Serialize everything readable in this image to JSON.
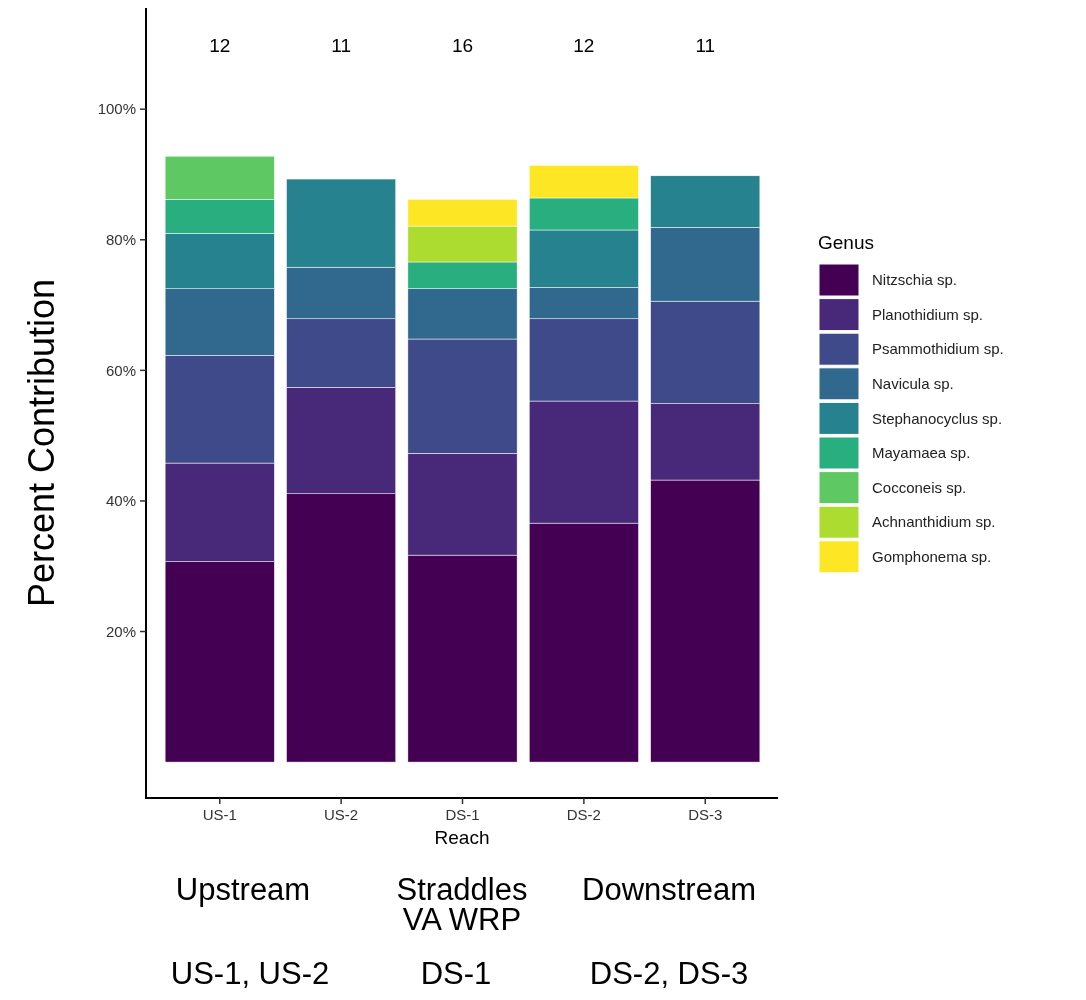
{
  "chart_data": {
    "type": "bar",
    "stacked": true,
    "xlabel": "Reach",
    "ylabel": "Percent Contribution",
    "legend_title": "Genus",
    "legend": "right",
    "categories": [
      "US-1",
      "US-2",
      "DS-1",
      "DS-2",
      "DS-3"
    ],
    "ylim": [
      -5.5,
      115.5
    ],
    "yticks": [
      {
        "value": 20,
        "label": "20%"
      },
      {
        "value": 40,
        "label": "40%"
      },
      {
        "value": 60,
        "label": "60%"
      },
      {
        "value": 80,
        "label": "80%"
      },
      {
        "value": 100,
        "label": "100%"
      }
    ],
    "grid": false,
    "series": [
      {
        "name": "Nitzschia sp.",
        "color": "#440154",
        "values": [
          30.7,
          41.1,
          31.7,
          36.6,
          43.2
        ]
      },
      {
        "name": "Planothidium sp.",
        "color": "#482878",
        "values": [
          15.1,
          16.3,
          15.6,
          18.7,
          11.7
        ]
      },
      {
        "name": "Psammothidium sp.",
        "color": "#3e4a89",
        "values": [
          16.5,
          10.5,
          17.5,
          12.6,
          15.7
        ]
      },
      {
        "name": "Navicula sp.",
        "color": "#31688e",
        "values": [
          10.2,
          7.9,
          7.7,
          4.8,
          11.3
        ]
      },
      {
        "name": "Stephanocyclus sp.",
        "color": "#26828e",
        "values": [
          8.5,
          13.5,
          null,
          8.8,
          7.9
        ]
      },
      {
        "name": "Mayamaea sp.",
        "color": "#29af7f",
        "values": [
          5.2,
          null,
          4.1,
          4.9,
          null
        ]
      },
      {
        "name": "Cocconeis sp.",
        "color": "#5ec962",
        "values": [
          6.6,
          null,
          null,
          null,
          null
        ]
      },
      {
        "name": "Achnanthidium sp.",
        "color": "#addc30",
        "values": [
          null,
          null,
          5.5,
          null,
          null
        ]
      },
      {
        "name": "Gomphonema sp.",
        "color": "#fde725",
        "values": [
          null,
          null,
          4.1,
          5.0,
          null
        ]
      }
    ],
    "annotations": [
      "12",
      "11",
      "16",
      "12",
      "11",
      "Upstream",
      "Straddles VA WRP",
      "Downstream",
      "US-1, US-2",
      "DS-1",
      "DS-2, DS-3"
    ]
  }
}
